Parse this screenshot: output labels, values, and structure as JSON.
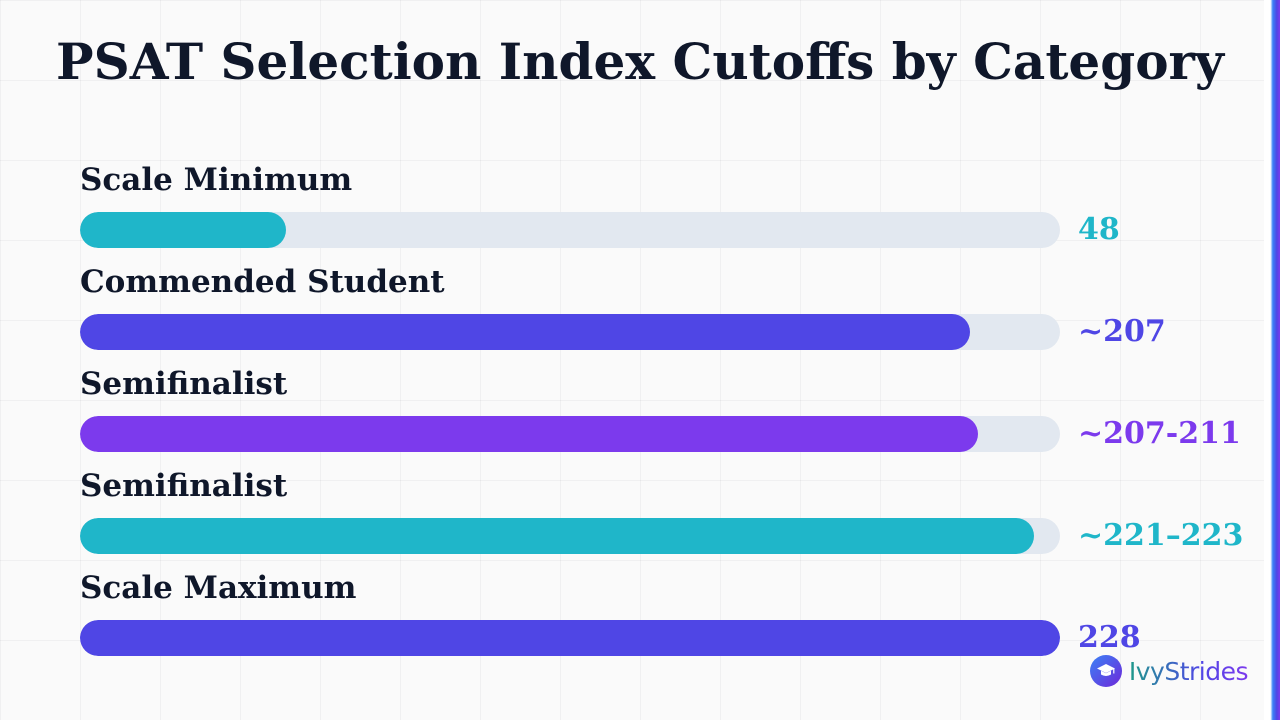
{
  "chart_data": {
    "type": "bar",
    "orientation": "horizontal",
    "title": "PSAT Selection Index Cutoffs by Category",
    "xlim": [
      0,
      228
    ],
    "grid": true,
    "categories": [
      "Scale Minimum",
      "Commended Student",
      "Semifinalist",
      "Semifinalist",
      "Scale Maximum"
    ],
    "values": [
      48,
      207,
      209,
      222,
      228
    ],
    "value_labels": [
      "48",
      "~207",
      "~207-211",
      "~221–223",
      "228"
    ],
    "colors": [
      "#1fb6c9",
      "#4f46e5",
      "#7c3aed",
      "#1fb6c9",
      "#4f46e5"
    ],
    "track_color": "#e2e8f0"
  },
  "brand": {
    "name": "IvyStrides",
    "icon": "graduation-cap-icon"
  }
}
